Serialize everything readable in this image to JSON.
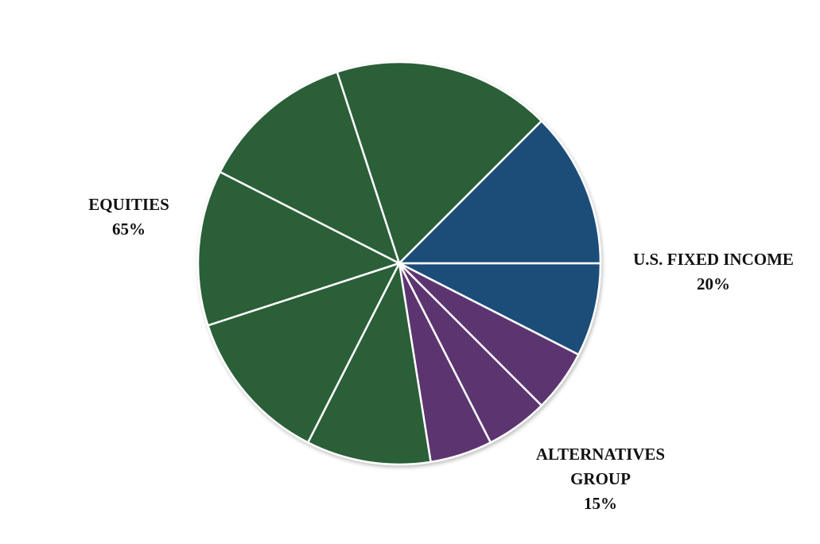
{
  "chart_data": {
    "type": "pie",
    "title": "",
    "start_angle_deg": 0,
    "direction": "clockwise",
    "groups": [
      {
        "name": "EQUITIES",
        "percent_label": "65%",
        "value": 65,
        "color": "#2b5e39",
        "slices": [
          10.0,
          12.5,
          12.5,
          12.5,
          17.5
        ]
      },
      {
        "name": "U.S. FIXED INCOME",
        "percent_label": "20%",
        "value": 20,
        "color": "#1f4e79",
        "slices": [
          12.5,
          7.5
        ]
      },
      {
        "name": "ALTERNATIVES GROUP",
        "name_lines": [
          "ALTERNATIVES",
          "GROUP"
        ],
        "percent_label": "15%",
        "value": 15,
        "color": "#5b3670",
        "slices": [
          5.0,
          5.0,
          5.0
        ]
      }
    ],
    "slice_order": [
      {
        "group": "U.S. FIXED INCOME",
        "value": 7.5
      },
      {
        "group": "ALTERNATIVES GROUP",
        "value": 5.0
      },
      {
        "group": "ALTERNATIVES GROUP",
        "value": 5.0
      },
      {
        "group": "ALTERNATIVES GROUP",
        "value": 5.0
      },
      {
        "group": "EQUITIES",
        "value": 10.0
      },
      {
        "group": "EQUITIES",
        "value": 12.5
      },
      {
        "group": "EQUITIES",
        "value": 12.5
      },
      {
        "group": "EQUITIES",
        "value": 12.5
      },
      {
        "group": "EQUITIES",
        "value": 17.5
      },
      {
        "group": "U.S. FIXED INCOME",
        "value": 12.5
      }
    ],
    "separator_color": "#ffffff",
    "legend": "none"
  },
  "labels": {
    "equities": {
      "name": "EQUITIES",
      "percent": "65%"
    },
    "fixed_income": {
      "name": "U.S. FIXED INCOME",
      "percent": "20%"
    },
    "alternatives": {
      "line1": "ALTERNATIVES",
      "line2": "GROUP",
      "percent": "15%"
    }
  }
}
